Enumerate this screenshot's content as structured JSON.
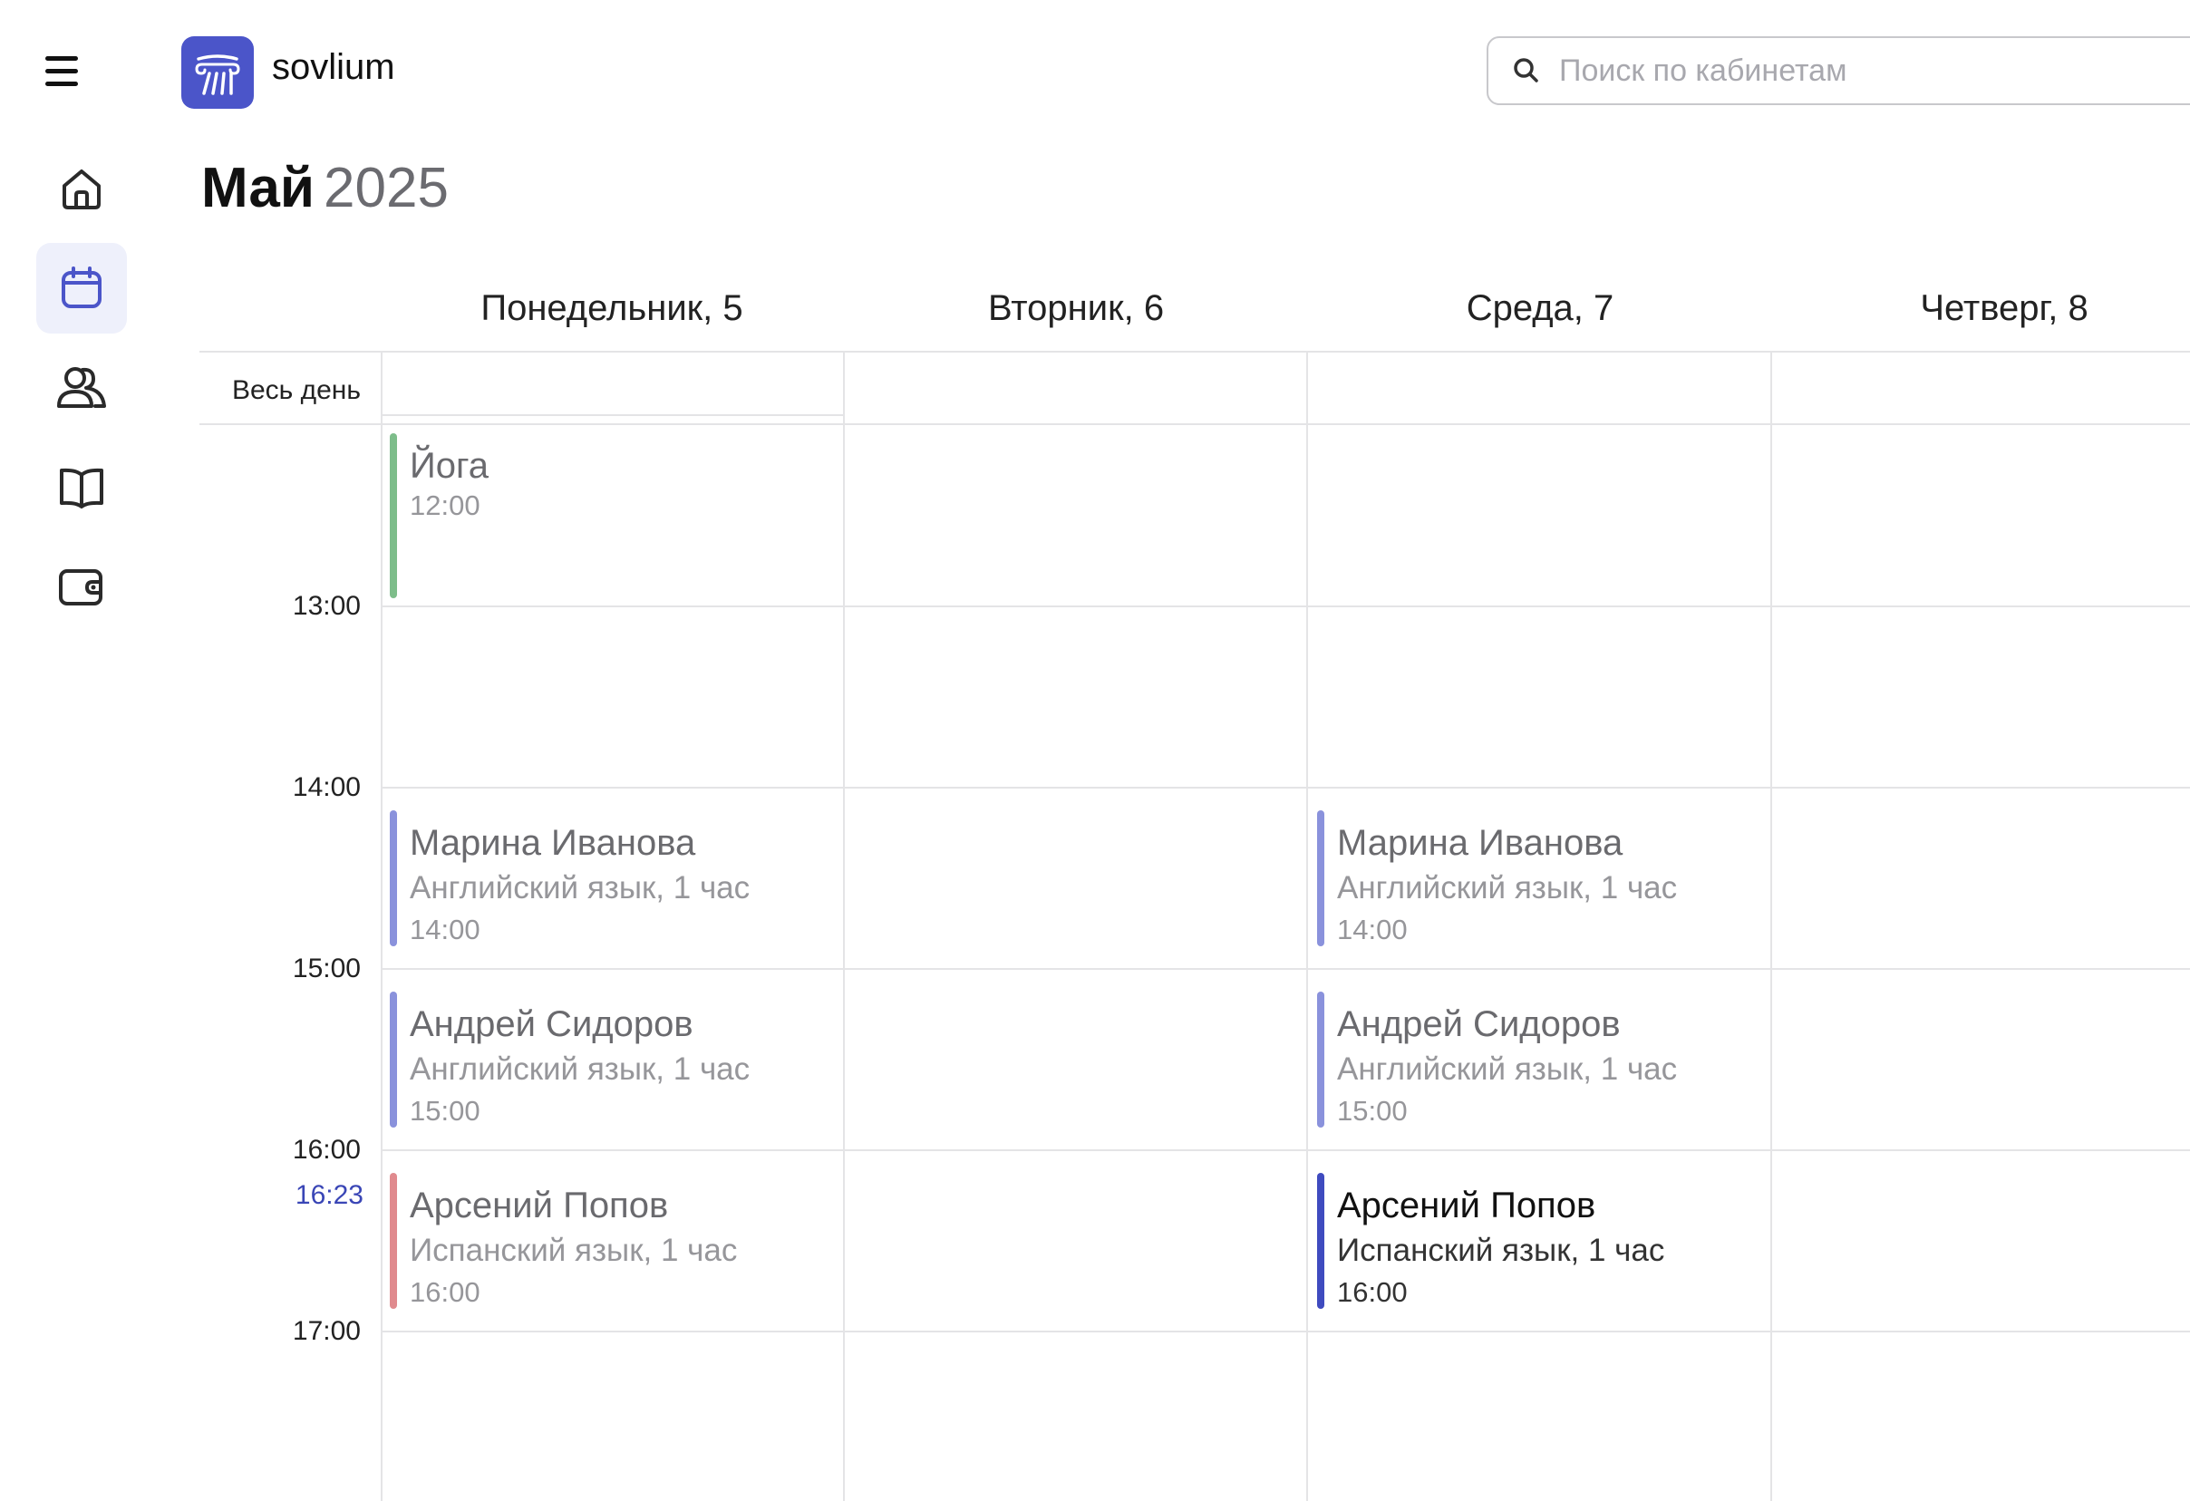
{
  "header": {
    "app_name": "sovlium",
    "search_placeholder": "Поиск по кабинетам"
  },
  "sidebar": {
    "items": [
      {
        "icon": "home-icon",
        "active": false
      },
      {
        "icon": "calendar-icon",
        "active": true
      },
      {
        "icon": "users-icon",
        "active": false
      },
      {
        "icon": "book-icon",
        "active": false
      },
      {
        "icon": "wallet-icon",
        "active": false
      }
    ]
  },
  "calendar": {
    "month": "Май",
    "year": "2025",
    "days": [
      "Понедельник, 5",
      "Вторник, 6",
      "Среда, 7",
      "Четверг, 8"
    ],
    "all_day_label": "Весь день",
    "hours": [
      "13:00",
      "14:00",
      "15:00",
      "16:00",
      "17:00"
    ],
    "current_time": "16:23",
    "events": [
      {
        "name": "Йога",
        "subtitle": "",
        "time": "12:00",
        "color": "#7dbd8a",
        "style": "faded"
      },
      {
        "name": "Марина Иванова",
        "subtitle": "Английский язык, 1 час",
        "time": "14:00",
        "color": "#8a92dc",
        "style": "faded"
      },
      {
        "name": "Андрей Сидоров",
        "subtitle": "Английский язык, 1 час",
        "time": "15:00",
        "color": "#8a92dc",
        "style": "faded"
      },
      {
        "name": "Арсений Попов",
        "subtitle": "Испанский язык, 1 час",
        "time": "16:00",
        "color": "#e08a8e",
        "style": "faded"
      },
      {
        "name": "Марина Иванова",
        "subtitle": "Английский язык, 1 час",
        "time": "14:00",
        "color": "#8a92dc",
        "style": "faded"
      },
      {
        "name": "Андрей Сидоров",
        "subtitle": "Английский язык, 1 час",
        "time": "15:00",
        "color": "#8a92dc",
        "style": "faded"
      },
      {
        "name": "Арсений Попов",
        "subtitle": "Испанский язык, 1 час",
        "time": "16:00",
        "color": "#3f4bbf",
        "style": "strong"
      }
    ]
  }
}
